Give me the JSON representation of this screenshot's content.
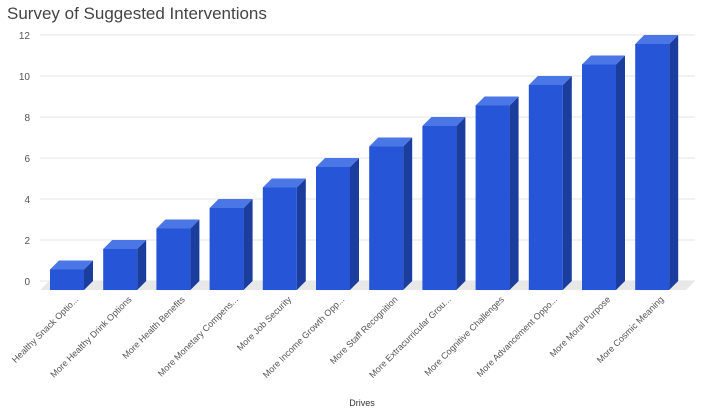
{
  "chart_data": {
    "type": "bar",
    "title": "Survey of Suggested Interventions",
    "xlabel": "Drives",
    "ylabel": "",
    "ylim": [
      0,
      12
    ],
    "yticks": [
      0,
      2,
      4,
      6,
      8,
      10,
      12
    ],
    "grid": true,
    "legend": "none",
    "bar_color": "#2655D8",
    "bar_top_color": "#4A76E6",
    "bar_side_color": "#1B3E9E",
    "categories": [
      "Healthy Snack Optio...",
      "More Healthy Drink Options",
      "More Health Benefits",
      "More Monetary Compens...",
      "More Job Security",
      "More Income Growth Opp...",
      "More Staff Recognition",
      "More Extracurricular Grou...",
      "More Cognitive Challenges",
      "More Advancement Oppo...",
      "More Moral Purpose",
      "More Cosmic Meaning"
    ],
    "values": [
      1,
      2,
      3,
      4,
      5,
      6,
      7,
      8,
      9,
      10,
      11,
      12
    ]
  }
}
